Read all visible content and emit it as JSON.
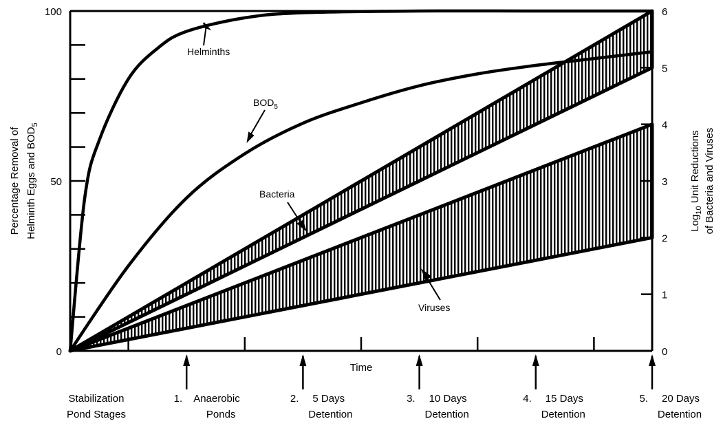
{
  "chart_data": {
    "type": "line",
    "title": "",
    "xlabel": "Time",
    "ylabel_left": "Percentage Removal of",
    "ylabel_left_2": "Helminth Eggs and BOD",
    "ylabel_left_sub": "5",
    "ylabel_right_1": "Log",
    "ylabel_right_sub": "10",
    "ylabel_right_2": " Unit Reductions",
    "ylabel_right_3": "of Bacteria and Viruses",
    "xlim": [
      0,
      10
    ],
    "ylim_left": [
      0,
      100
    ],
    "ylim_right": [
      0,
      6
    ],
    "left_ticks": [
      "0",
      "50",
      "100"
    ],
    "right_ticks": [
      "0",
      "1",
      "2",
      "3",
      "4",
      "5",
      "6"
    ],
    "stages": [
      {
        "x": 0,
        "num": "",
        "line1": "Stabilization",
        "line2": "Pond Stages"
      },
      {
        "x": 2,
        "num": "1.",
        "line1": "Anaerobic",
        "line2": "Ponds"
      },
      {
        "x": 4,
        "num": "2.",
        "line1": "5 Days",
        "line2": "Detention"
      },
      {
        "x": 6,
        "num": "3.",
        "line1": "10 Days",
        "line2": "Detention"
      },
      {
        "x": 8,
        "num": "4.",
        "line1": "15 Days",
        "line2": "Detention"
      },
      {
        "x": 10,
        "num": "5.",
        "line1": "20 Days",
        "line2": "Detention"
      }
    ],
    "series": [
      {
        "name": "Helminths",
        "axis": "left",
        "x": [
          0,
          0.25,
          0.5,
          1,
          1.5,
          2,
          3,
          4,
          6,
          8,
          10
        ],
        "y": [
          0,
          45,
          62,
          80,
          89,
          94,
          98,
          99.5,
          100,
          100,
          100
        ]
      },
      {
        "name": "BOD",
        "sub": "5",
        "axis": "left",
        "x": [
          0,
          1,
          2,
          3,
          4,
          5,
          6,
          7,
          8,
          9,
          10
        ],
        "y": [
          0,
          25,
          45,
          58,
          67,
          73,
          78,
          81.5,
          84,
          86,
          88
        ]
      },
      {
        "name": "Bacteria",
        "axis": "right",
        "type": "band",
        "x": [
          0,
          10
        ],
        "upper": [
          0,
          6
        ],
        "lower": [
          0,
          5
        ]
      },
      {
        "name": "Viruses",
        "axis": "right",
        "type": "band",
        "x": [
          0,
          10
        ],
        "upper": [
          0,
          4
        ],
        "lower": [
          0,
          2
        ]
      }
    ]
  }
}
